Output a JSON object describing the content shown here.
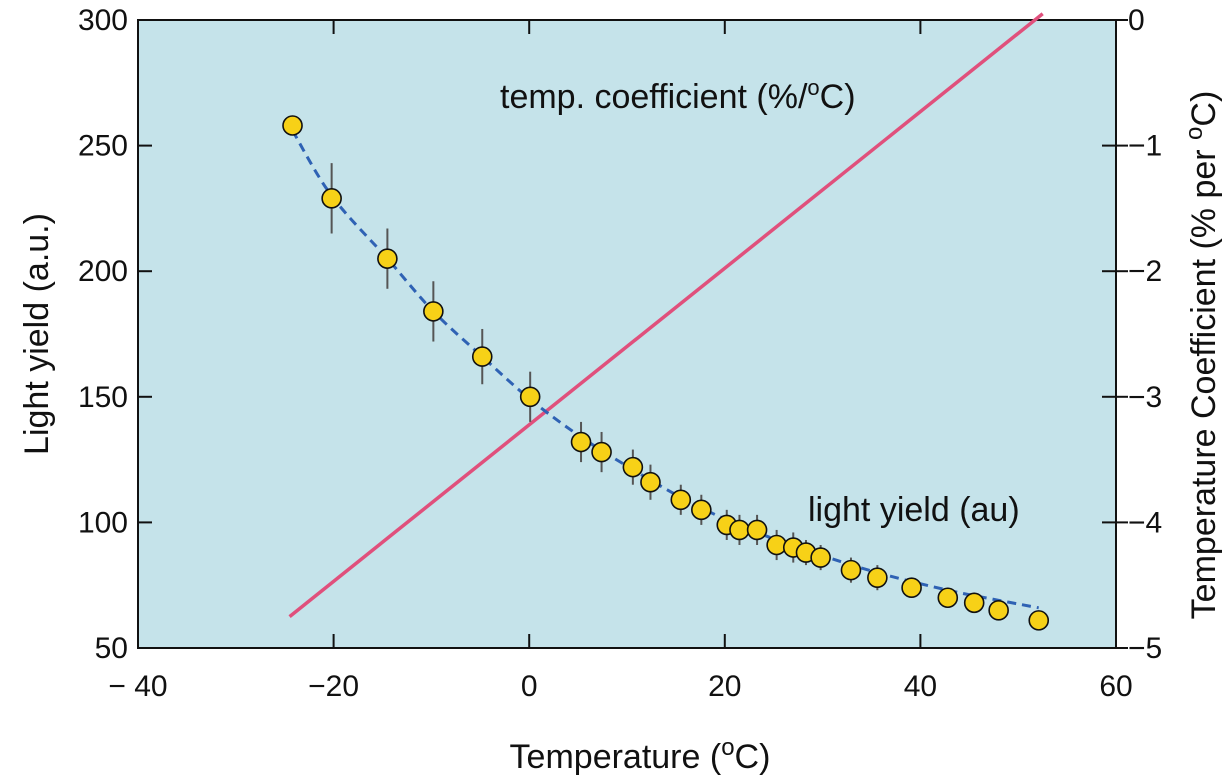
{
  "chart_data": {
    "type": "scatter",
    "title": "",
    "xlabel": "Temperature (",
    "xlabel_sup": "o",
    "xlabel_tail": "C)",
    "ylabel": "Light yield (a.u.)",
    "y2label": "Temperature Coefficient (% per ",
    "y2label_sup": "o",
    "y2label_tail": "C)",
    "xlim": [
      -40,
      60
    ],
    "ylim": [
      50,
      300
    ],
    "y2lim": [
      -5,
      0
    ],
    "x_ticks": [
      -40,
      -20,
      0,
      20,
      40,
      60
    ],
    "x_tick_labels": [
      "− 40",
      "−20",
      "0",
      "20",
      "40",
      "60"
    ],
    "y_ticks": [
      50,
      100,
      150,
      200,
      250,
      300
    ],
    "y_tick_labels": [
      "50",
      "100",
      "150",
      "200",
      "250",
      "300"
    ],
    "y2_ticks": [
      -5,
      -4,
      -3,
      -2,
      -1,
      0
    ],
    "y2_tick_labels": [
      "−5",
      "−4",
      "−3",
      "−2",
      "−1",
      "0"
    ],
    "grid": false,
    "background_color": "#c5e3ea",
    "series": [
      {
        "kind": "points-with-errorbars",
        "axis": "left",
        "color": "#f7d117",
        "x": [
          -24.2,
          -20.2,
          -14.5,
          -9.8,
          -4.8,
          0.1,
          5.3,
          7.4,
          10.6,
          12.4,
          15.5,
          17.6,
          20.2,
          21.5,
          23.3,
          25.3,
          27.0,
          28.3,
          29.8,
          32.9,
          35.6,
          39.1,
          42.8,
          45.5,
          48.0,
          52.1
        ],
        "y": [
          258,
          229,
          205,
          184,
          166,
          150,
          132,
          128,
          122,
          116,
          109,
          105,
          99,
          97,
          97,
          91,
          90,
          88,
          86,
          81,
          78,
          74,
          70,
          68,
          65,
          61
        ],
        "yerr": [
          0,
          14,
          12,
          12,
          11,
          10,
          8,
          8,
          7,
          7,
          6,
          6,
          6,
          6,
          6,
          6,
          6,
          5,
          5,
          5,
          5,
          4,
          4,
          4,
          3,
          3
        ]
      },
      {
        "kind": "dashed-fit",
        "axis": "left",
        "color": "#2f62b4",
        "x": [
          -24.2,
          -20.2,
          -14.5,
          -9.8,
          -4.8,
          0.1,
          5.3,
          10.6,
          15.5,
          20.2,
          25.3,
          29.8,
          35.6,
          42.8,
          48.0,
          52.1
        ],
        "y": [
          256,
          230,
          205,
          184,
          166,
          149,
          134,
          121,
          110,
          101,
          93,
          87,
          80,
          73,
          69,
          66
        ]
      },
      {
        "kind": "line",
        "axis": "right",
        "color": "#e0507c",
        "x": [
          -24.5,
          52.5
        ],
        "y": [
          -4.75,
          0.05
        ]
      }
    ],
    "annotations": [
      {
        "text": "temp. coefficient (%/",
        "sup": "o",
        "tail": "C)"
      },
      {
        "text": "light yield (au)"
      }
    ]
  }
}
